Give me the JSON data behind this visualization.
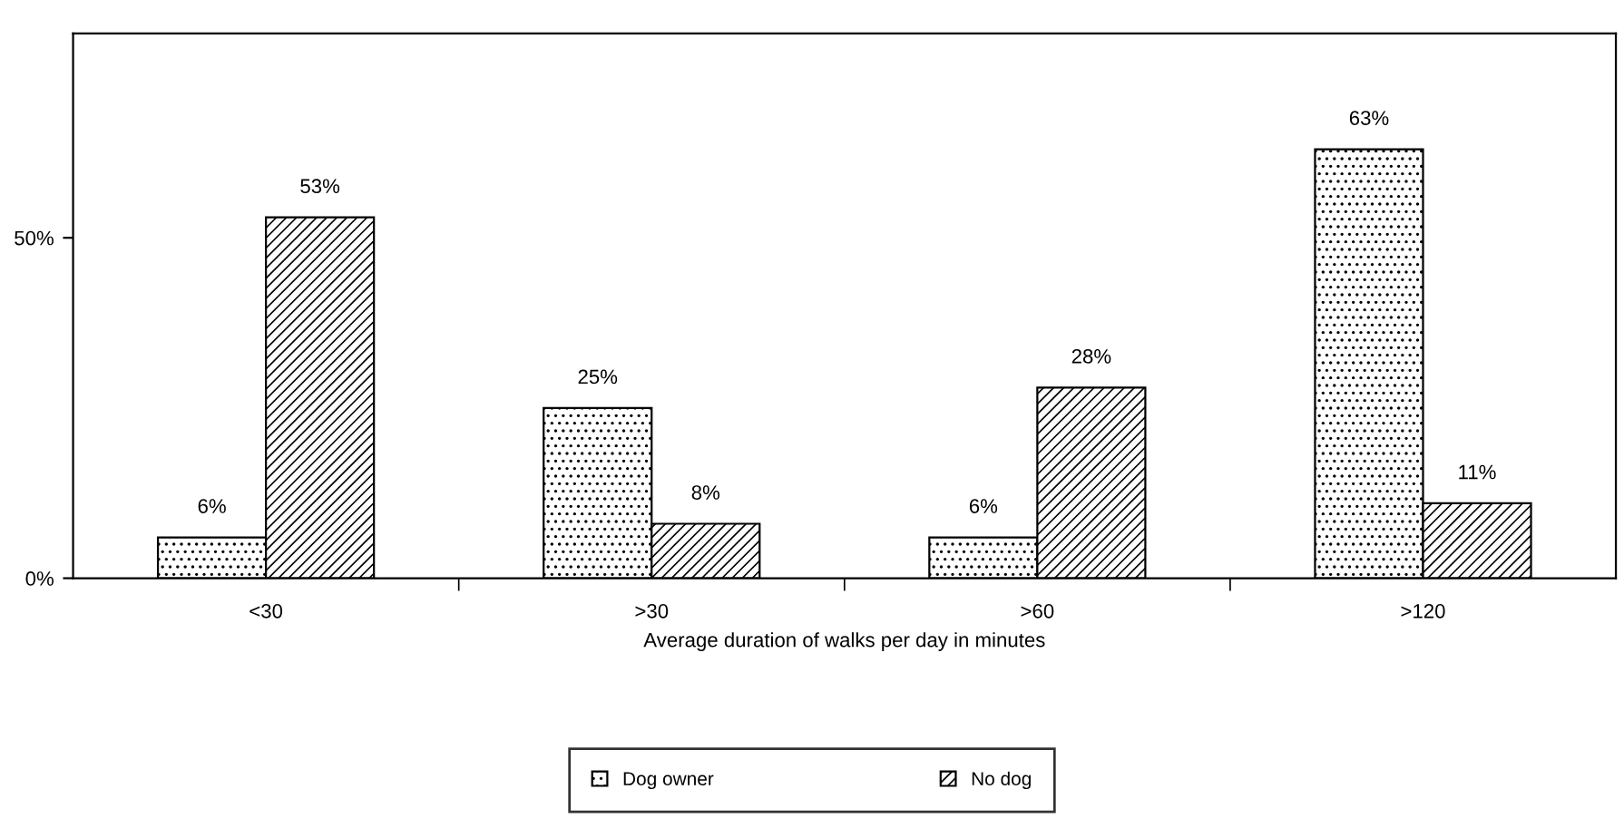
{
  "chart_data": {
    "type": "bar",
    "xlabel": "Average duration of walks per day in minutes",
    "categories": [
      "<30",
      ">30",
      ">60",
      ">120"
    ],
    "series": [
      {
        "name": "Dog owner",
        "color": "#000000",
        "values": [
          6,
          25,
          6,
          63
        ],
        "value_labels": [
          "6%",
          "25%",
          "6%",
          "63%"
        ]
      },
      {
        "name": "No dog",
        "color": "#000000",
        "values": [
          53,
          8,
          28,
          11
        ],
        "value_labels": [
          "53%",
          "8%",
          "28%",
          "11%"
        ]
      }
    ],
    "ylim": [
      0,
      80
    ],
    "yticks": [
      {
        "value": 0,
        "label": "0%"
      },
      {
        "value": 50,
        "label": "50%"
      }
    ],
    "grid": false,
    "legend": "bottom"
  }
}
